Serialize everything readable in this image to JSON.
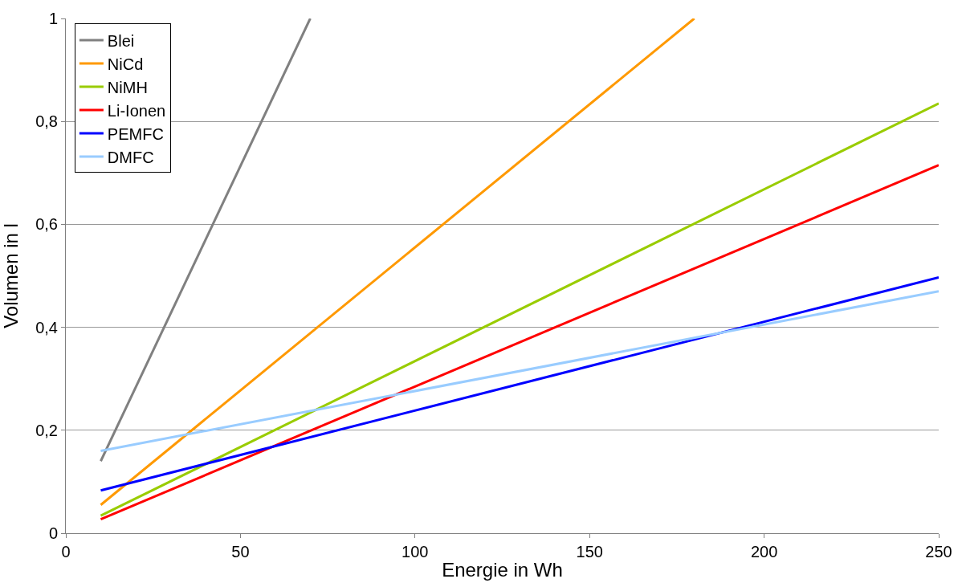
{
  "chart_data": {
    "type": "line",
    "xlabel": "Energie in Wh",
    "ylabel": "Volumen in l",
    "xlim": [
      0,
      250
    ],
    "xticks": [
      0,
      50,
      100,
      150,
      200,
      250
    ],
    "ylim": [
      0,
      1
    ],
    "yticks": [
      0,
      {
        "value": 0.2,
        "label": "0,2"
      },
      {
        "value": 0.4,
        "label": "0,4"
      },
      {
        "value": 0.6,
        "label": "0,6"
      },
      {
        "value": 0.8,
        "label": "0,8"
      },
      1
    ],
    "grid": "y",
    "legend": "top left",
    "marker": "none",
    "line_style": "solid",
    "series": [
      {
        "name": "Blei",
        "color": "#808080",
        "x": [
          10,
          70
        ],
        "values": [
          0.14,
          1.0
        ]
      },
      {
        "name": "NiCd",
        "color": "#ff9900",
        "x": [
          10,
          180
        ],
        "values": [
          0.055,
          1.0
        ]
      },
      {
        "name": "NiMH",
        "color": "#99cc00",
        "x": [
          10,
          250
        ],
        "values": [
          0.034,
          0.835
        ]
      },
      {
        "name": "Li-Ionen",
        "color": "#ff0000",
        "x": [
          10,
          250
        ],
        "values": [
          0.027,
          0.715
        ]
      },
      {
        "name": "PEMFC",
        "color": "#0000ff",
        "x": [
          10,
          250
        ],
        "values": [
          0.083,
          0.497
        ]
      },
      {
        "name": "DMFC",
        "color": "#99ccff",
        "x": [
          10,
          250
        ],
        "values": [
          0.16,
          0.47
        ]
      }
    ]
  }
}
